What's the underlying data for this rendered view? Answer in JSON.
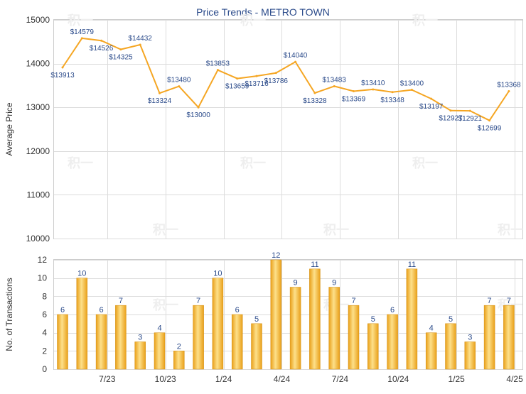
{
  "chart_data": [
    {
      "type": "line",
      "title": "Price Trends - METRO TOWN",
      "ylabel": "Average Price",
      "ylim": [
        10000,
        15000
      ],
      "yticks": [
        10000,
        11000,
        12000,
        13000,
        14000,
        15000
      ],
      "grid": true,
      "series": [
        {
          "values": [
            13913,
            14579,
            14526,
            14325,
            14432,
            13324,
            13480,
            13000,
            13853,
            13659,
            13716,
            13786,
            14040,
            13328,
            13483,
            13369,
            13410,
            13348,
            13400,
            13197,
            12927,
            12921,
            12699,
            13368
          ],
          "labels": [
            "$13913",
            "$14579",
            "$14526",
            "$14325",
            "$14432",
            "$13324",
            "$13480",
            "$13000",
            "$13853",
            "$13659",
            "$13716",
            "$13786",
            "$14040",
            "$13328",
            "$13483",
            "$13369",
            "$13410",
            "$13348",
            "$13400",
            "$13197",
            "$12927",
            "$12921",
            "$12699",
            "$13368"
          ],
          "color": "#f5a623"
        }
      ]
    },
    {
      "type": "bar",
      "ylabel": "No. of Transactions",
      "ylim": [
        0,
        12
      ],
      "yticks": [
        0,
        2,
        4,
        6,
        8,
        10,
        12
      ],
      "grid": true,
      "x_tick_labels": [
        "7/23",
        "10/23",
        "1/24",
        "4/24",
        "7/24",
        "10/24",
        "1/25",
        "4/25"
      ],
      "series": [
        {
          "values": [
            6,
            10,
            6,
            7,
            3,
            4,
            2,
            7,
            10,
            6,
            5,
            12,
            9,
            11,
            9,
            7,
            5,
            6,
            11,
            4,
            5,
            3,
            7,
            7
          ],
          "color": "#f5a623"
        }
      ]
    }
  ],
  "watermark_text": "积一",
  "colors": {
    "line": "#f5a623",
    "bar_light": "#fde08a",
    "bar_dark": "#e9a01a",
    "grid": "#dcdcdc",
    "title": "#2a4a8a",
    "label": "#2a4a8a"
  }
}
